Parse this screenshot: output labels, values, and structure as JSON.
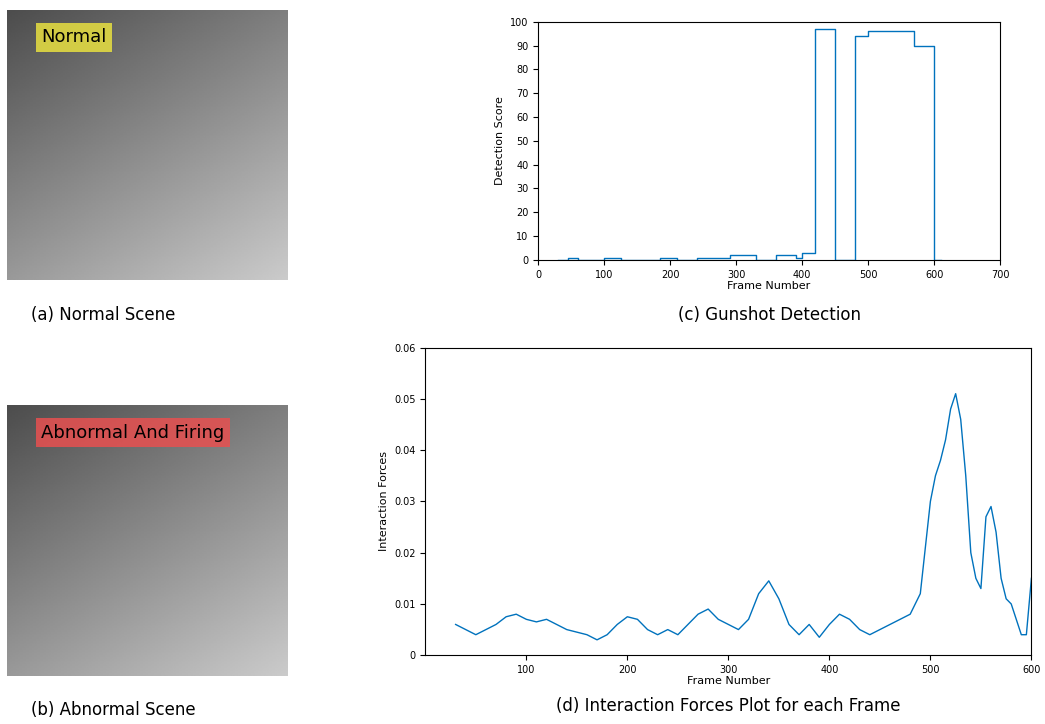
{
  "panels": [
    {
      "caption": "(a) Normal Scene",
      "overlay": "Normal"
    },
    {
      "caption": "(b) Abnormal Scene",
      "overlay": "Abnormal And Firing"
    }
  ],
  "chart_data": [
    {
      "type": "line",
      "title": "(c) Gunshot Detection",
      "x_label": "Frame Number",
      "y_label": "Detection Score",
      "x": [
        30,
        45,
        60,
        100,
        125,
        150,
        185,
        210,
        240,
        270,
        290,
        330,
        360,
        370,
        390,
        400,
        420,
        450,
        480,
        500,
        570,
        600,
        610
      ],
      "values": [
        0,
        1,
        0,
        1,
        0,
        0,
        1,
        0,
        1,
        1,
        2,
        0,
        2,
        2,
        1,
        3,
        97,
        0,
        94,
        96,
        90,
        0,
        0
      ],
      "color": "#0072bd",
      "line_style": "steps",
      "xlim": [
        0,
        700
      ],
      "ylim": [
        0,
        100
      ],
      "xticks": [
        0,
        100,
        200,
        300,
        400,
        500,
        600,
        700
      ],
      "yticks": [
        0,
        10,
        20,
        30,
        40,
        50,
        60,
        70,
        80,
        90,
        100
      ]
    },
    {
      "type": "line",
      "title": "(d) Interaction Forces Plot for each Frame",
      "x_label": "Frame Number",
      "y_label": "Interaction Forces",
      "x": [
        30,
        40,
        50,
        60,
        70,
        80,
        90,
        100,
        110,
        120,
        130,
        140,
        150,
        160,
        170,
        180,
        190,
        200,
        210,
        220,
        230,
        240,
        250,
        260,
        270,
        280,
        290,
        300,
        310,
        320,
        330,
        340,
        350,
        360,
        370,
        380,
        390,
        400,
        410,
        420,
        430,
        440,
        450,
        460,
        470,
        480,
        490,
        500,
        505,
        510,
        515,
        520,
        525,
        530,
        535,
        540,
        545,
        550,
        555,
        560,
        565,
        570,
        575,
        580,
        585,
        590,
        595,
        600
      ],
      "values": [
        0.006,
        0.005,
        0.004,
        0.005,
        0.006,
        0.0075,
        0.008,
        0.007,
        0.0065,
        0.007,
        0.006,
        0.005,
        0.0045,
        0.004,
        0.003,
        0.004,
        0.006,
        0.0075,
        0.007,
        0.005,
        0.004,
        0.005,
        0.004,
        0.006,
        0.008,
        0.009,
        0.007,
        0.006,
        0.005,
        0.007,
        0.012,
        0.0145,
        0.011,
        0.006,
        0.004,
        0.006,
        0.0035,
        0.006,
        0.008,
        0.007,
        0.005,
        0.004,
        0.005,
        0.006,
        0.007,
        0.008,
        0.012,
        0.03,
        0.035,
        0.038,
        0.042,
        0.048,
        0.051,
        0.046,
        0.035,
        0.02,
        0.015,
        0.013,
        0.027,
        0.029,
        0.024,
        0.015,
        0.011,
        0.01,
        0.007,
        0.004,
        0.004,
        0.015
      ],
      "color": "#0072bd",
      "line_style": "solid",
      "xlim": [
        0,
        600
      ],
      "ylim": [
        0,
        0.06
      ],
      "xticks": [
        100,
        200,
        300,
        400,
        500,
        600
      ],
      "yticks": [
        0,
        0.01,
        0.02,
        0.03,
        0.04,
        0.05,
        0.06
      ]
    }
  ]
}
